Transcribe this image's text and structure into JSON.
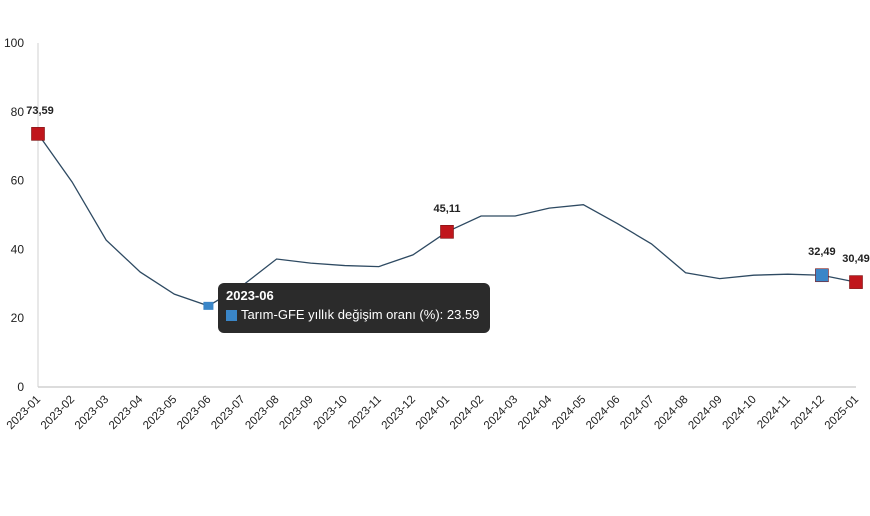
{
  "chart_data": {
    "type": "line",
    "title": "",
    "xlabel": "",
    "ylabel": "",
    "ylim": [
      0,
      100
    ],
    "yticks": [
      0,
      20,
      40,
      60,
      80,
      100
    ],
    "grid": false,
    "categories": [
      "2023-01",
      "2023-02",
      "2023-03",
      "2023-04",
      "2023-05",
      "2023-06",
      "2023-07",
      "2023-08",
      "2023-09",
      "2023-10",
      "2023-11",
      "2023-12",
      "2024-01",
      "2024-02",
      "2024-03",
      "2024-04",
      "2024-05",
      "2024-06",
      "2024-07",
      "2024-08",
      "2024-09",
      "2024-10",
      "2024-11",
      "2024-12",
      "2025-01"
    ],
    "series": [
      {
        "name": "Tarım-GFE yıllık değişim oranı (%)",
        "color": "#2e4a62",
        "values": [
          73.59,
          59.6,
          42.7,
          33.4,
          27.0,
          23.59,
          29.5,
          37.2,
          36.0,
          35.3,
          35.0,
          38.4,
          45.11,
          49.7,
          49.7,
          52.0,
          53.0,
          47.5,
          41.6,
          33.2,
          31.5,
          32.5,
          32.8,
          32.49,
          30.49
        ]
      }
    ],
    "annotations": [
      {
        "x": "2023-01",
        "label": "73,59",
        "marker_color": "#c0161c"
      },
      {
        "x": "2024-01",
        "label": "45,11",
        "marker_color": "#c0161c"
      },
      {
        "x": "2024-12",
        "label": "32,49",
        "marker_color": "#3a86c8"
      },
      {
        "x": "2025-01",
        "label": "30,49",
        "marker_color": "#c0161c"
      }
    ],
    "tooltip": {
      "x": "2023-06",
      "title": "2023-06",
      "series_label": "Tarım-GFE yıllık değişim oranı (%)",
      "value_text": "Tarım-GFE yıllık değişim oranı (%): 23.59",
      "swatch_color": "#3a86c8"
    }
  },
  "colors": {
    "line": "#2e4a62",
    "highlight_red": "#c0161c",
    "highlight_blue": "#3a86c8",
    "axis": "#d0d0d0",
    "tooltip_bg": "#2b2b2b"
  }
}
